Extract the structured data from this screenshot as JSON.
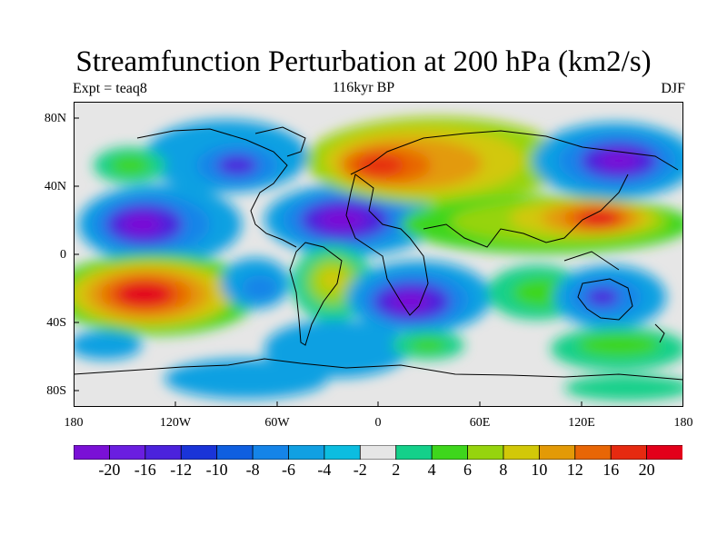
{
  "header": {
    "title": "Streamfunction Perturbation at 200 hPa (km2/s)",
    "left_subtitle": "Expt = teaq8",
    "center_subtitle": "116kyr BP",
    "right_subtitle": "DJF"
  },
  "axes": {
    "lat_labels": [
      "80N",
      "40N",
      "0",
      "40S",
      "80S"
    ],
    "lon_labels": [
      "180",
      "120W",
      "60W",
      "0",
      "60E",
      "120E",
      "180"
    ]
  },
  "colorbar": {
    "labels": [
      "-20",
      "-16",
      "-12",
      "-10",
      "-8",
      "-6",
      "-4",
      "-2",
      "2",
      "4",
      "6",
      "8",
      "10",
      "12",
      "16",
      "20"
    ],
    "colors": [
      "#7a10d6",
      "#6a1ee0",
      "#4b22dc",
      "#1a34d8",
      "#0f5fe0",
      "#1584e8",
      "#11a0e2",
      "#0cbde0",
      "#e6e6e6",
      "#14d08a",
      "#3ed61c",
      "#96d40e",
      "#d2c808",
      "#e39a07",
      "#e86606",
      "#e62a10",
      "#e3001a"
    ]
  }
}
